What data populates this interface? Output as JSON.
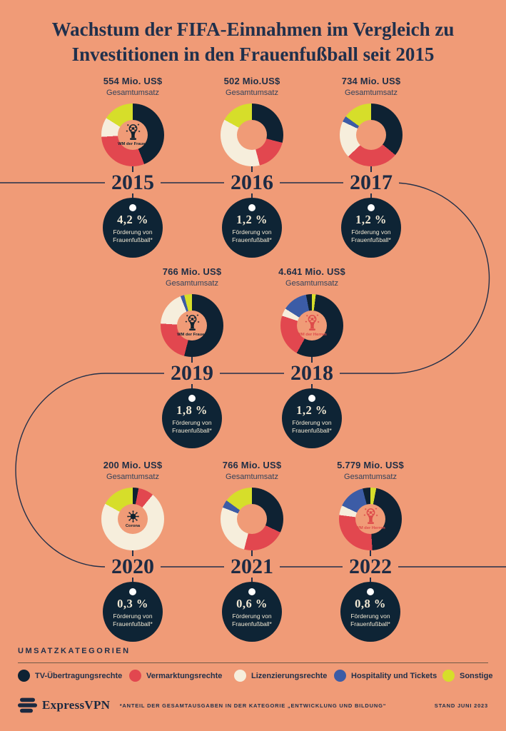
{
  "title": {
    "text": "Wachstum der FIFA-Einnahmen im Vergleich zu Investitionen in den Frauenfußball seit 2015"
  },
  "colors": {
    "background": "#F09B77",
    "ink": "#1B2940",
    "funding_circle": "#0E2435",
    "timeline_line": "#22304A",
    "trophy_red": "#DD4B4A",
    "trophy_navy": "#10222F"
  },
  "legend": {
    "heading": "UMSATZKATEGORIEN"
  },
  "chart_data": {
    "type": "pie",
    "note": "Eight donut charts (revenue share by category per year), values in percent of yearly total revenue",
    "categories": [
      {
        "id": "tv",
        "label": "TV-Übertragungsrechte",
        "color": "#0E2233"
      },
      {
        "id": "vermarktung",
        "label": "Vermarktungsrechte",
        "color": "#E2474F"
      },
      {
        "id": "lizenzierung",
        "label": "Lizenzierungsrechte",
        "color": "#F6EEDC"
      },
      {
        "id": "hospitality",
        "label": "Hospitality und Tickets",
        "color": "#3C5CA6"
      },
      {
        "id": "sonstige",
        "label": "Sonstige",
        "color": "#D6DE2A"
      }
    ],
    "charts": [
      {
        "year": "2015",
        "revenue": "554 Mio. US$",
        "revenue_caption": "Gesamtumsatz",
        "funding_pct": "4,2 %",
        "funding_caption": "Förderung von\nFrauenfußball*",
        "center_icon": "wm-der-frauen",
        "center_label": "WM der Frauen",
        "center_color": "#10222F",
        "segments": [
          {
            "category": "tv",
            "pct": 44
          },
          {
            "category": "vermarktung",
            "pct": 30
          },
          {
            "category": "lizenzierung",
            "pct": 10
          },
          {
            "category": "sonstige",
            "pct": 16
          }
        ]
      },
      {
        "year": "2016",
        "revenue": "502 Mio.US$",
        "revenue_caption": "Gesamtumsatz",
        "funding_pct": "1,2 %",
        "funding_caption": "Förderung von\nFrauenfußball*",
        "center_icon": null,
        "center_label": "",
        "center_color": "",
        "segments": [
          {
            "category": "tv",
            "pct": 29
          },
          {
            "category": "vermarktung",
            "pct": 17
          },
          {
            "category": "lizenzierung",
            "pct": 37
          },
          {
            "category": "sonstige",
            "pct": 17
          }
        ]
      },
      {
        "year": "2017",
        "revenue": "734 Mio. US$",
        "revenue_caption": "Gesamtumsatz",
        "funding_pct": "1,2 %",
        "funding_caption": "Förderung von\nFrauenfußball*",
        "center_icon": null,
        "center_label": "",
        "center_color": "",
        "segments": [
          {
            "category": "tv",
            "pct": 36
          },
          {
            "category": "vermarktung",
            "pct": 27
          },
          {
            "category": "lizenzierung",
            "pct": 19
          },
          {
            "category": "hospitality",
            "pct": 3
          },
          {
            "category": "sonstige",
            "pct": 15
          }
        ]
      },
      {
        "year": "2019",
        "revenue": "766 Mio. US$",
        "revenue_caption": "Gesamtumsatz",
        "funding_pct": "1,8 %",
        "funding_caption": "Förderung von\nFrauenfußball*",
        "center_icon": "wm-der-frauen",
        "center_label": "WM der Frauen",
        "center_color": "#10222F",
        "segments": [
          {
            "category": "tv",
            "pct": 54
          },
          {
            "category": "vermarktung",
            "pct": 22
          },
          {
            "category": "lizenzierung",
            "pct": 18
          },
          {
            "category": "hospitality",
            "pct": 2
          },
          {
            "category": "sonstige",
            "pct": 4
          }
        ]
      },
      {
        "year": "2018",
        "revenue": "4.641 Mio. US$",
        "revenue_caption": "Gesamtumsatz",
        "funding_pct": "1,2 %",
        "funding_caption": "Förderung von\nFrauenfußball*",
        "center_icon": "wm-der-herren",
        "center_label": "WM der Herren",
        "center_color": "#DD4B4A",
        "segments": [
          {
            "category": "sonstige",
            "pct": 2
          },
          {
            "category": "tv",
            "pct": 56
          },
          {
            "category": "vermarktung",
            "pct": 22
          },
          {
            "category": "lizenzierung",
            "pct": 4
          },
          {
            "category": "hospitality",
            "pct": 13
          },
          {
            "category": "tv",
            "pct": 3
          }
        ]
      },
      {
        "year": "2020",
        "revenue": "200 Mio. US$",
        "revenue_caption": "Gesamtumsatz",
        "funding_pct": "0,3 %",
        "funding_caption": "Förderung von\nFrauenfußball*",
        "center_icon": "corona",
        "center_label": "Corona",
        "center_color": "#10222F",
        "segments": [
          {
            "category": "tv",
            "pct": 3
          },
          {
            "category": "vermarktung",
            "pct": 8
          },
          {
            "category": "lizenzierung",
            "pct": 72
          },
          {
            "category": "sonstige",
            "pct": 17
          }
        ]
      },
      {
        "year": "2021",
        "revenue": "766 Mio. US$",
        "revenue_caption": "Gesamtumsatz",
        "funding_pct": "0,6 %",
        "funding_caption": "Förderung von\nFrauenfußball*",
        "center_icon": null,
        "center_label": "",
        "center_color": "",
        "segments": [
          {
            "category": "tv",
            "pct": 32
          },
          {
            "category": "vermarktung",
            "pct": 22
          },
          {
            "category": "lizenzierung",
            "pct": 27
          },
          {
            "category": "hospitality",
            "pct": 4
          },
          {
            "category": "sonstige",
            "pct": 15
          }
        ]
      },
      {
        "year": "2022",
        "revenue": "5.779 Mio. US$",
        "revenue_caption": "Gesamtumsatz",
        "funding_pct": "0,8 %",
        "funding_caption": "Förderung von\nFrauenfußball*",
        "center_icon": "wm-der-herren",
        "center_label": "WM der Herren",
        "center_color": "#DD4B4A",
        "segments": [
          {
            "category": "sonstige",
            "pct": 3
          },
          {
            "category": "tv",
            "pct": 46
          },
          {
            "category": "vermarktung",
            "pct": 28
          },
          {
            "category": "lizenzierung",
            "pct": 5
          },
          {
            "category": "hospitality",
            "pct": 14
          },
          {
            "category": "tv",
            "pct": 4
          }
        ]
      }
    ]
  },
  "footer": {
    "brand": "ExpressVPN",
    "footnote": "*ANTEIL DER GESAMTAUSGABEN IN DER KATEGORIE „ENTWICKLUNG UND BILDUNG“",
    "date": "STAND JUNI 2023"
  }
}
